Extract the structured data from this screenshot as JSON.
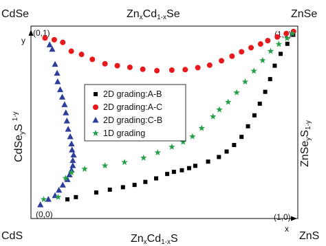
{
  "chart_data": {
    "type": "scatter",
    "title": "",
    "axes": {
      "x_range": [
        0,
        1
      ],
      "y_range": [
        0,
        1
      ],
      "x_axis_label": "x",
      "y_axis_label": "y",
      "grid": false,
      "legend_placement": "center"
    },
    "labels": {
      "top_edge": {
        "pre": "Zn",
        "sub1": "x",
        "mid": "Cd",
        "sub2": "1-x",
        "post": "Se"
      },
      "bottom_edge": {
        "pre": "Zn",
        "sub1": "x",
        "mid": "Cd",
        "sub2": "1-x",
        "post": "S"
      },
      "left_edge": {
        "pre": "CdSe",
        "sub1": "y",
        "mid": "S",
        "sub2": "1-y"
      },
      "right_edge": {
        "pre": "ZnSe",
        "sub1": "y",
        "mid": "S",
        "sub2": "1-y"
      },
      "corner_top_left": "CdSe",
      "corner_top_right": "ZnSe",
      "corner_bottom_left": "CdS",
      "corner_bottom_right": "ZnS",
      "coord_top_left": "(0,1)",
      "coord_top_right": "(1,1)",
      "coord_bottom_left": "(0,0)",
      "coord_bottom_right": "(1,0)"
    },
    "series": [
      {
        "name": "2D grading:A-B",
        "marker": "square",
        "color": "#000000",
        "points": [
          [
            0.115,
            0.046
          ],
          [
            0.148,
            0.059
          ],
          [
            0.227,
            0.085
          ],
          [
            0.28,
            0.101
          ],
          [
            0.331,
            0.115
          ],
          [
            0.376,
            0.128
          ],
          [
            0.418,
            0.145
          ],
          [
            0.46,
            0.165
          ],
          [
            0.503,
            0.19
          ],
          [
            0.529,
            0.202
          ],
          [
            0.56,
            0.211
          ],
          [
            0.588,
            0.223
          ],
          [
            0.612,
            0.236
          ],
          [
            0.662,
            0.26
          ],
          [
            0.704,
            0.286
          ],
          [
            0.734,
            0.317
          ],
          [
            0.763,
            0.354
          ],
          [
            0.792,
            0.4
          ],
          [
            0.817,
            0.46
          ],
          [
            0.842,
            0.522
          ],
          [
            0.863,
            0.588
          ],
          [
            0.884,
            0.655
          ],
          [
            0.903,
            0.727
          ],
          [
            0.921,
            0.803
          ],
          [
            0.944,
            0.87
          ],
          [
            0.97,
            0.927
          ],
          [
            0.993,
            0.978
          ]
        ]
      },
      {
        "name": "2D grading:A-C",
        "marker": "circle",
        "color": "#e8191c",
        "points": [
          [
            0.028,
            0.96
          ],
          [
            0.064,
            0.95
          ],
          [
            0.097,
            0.935
          ],
          [
            0.13,
            0.885
          ],
          [
            0.17,
            0.867
          ],
          [
            0.212,
            0.839
          ],
          [
            0.261,
            0.814
          ],
          [
            0.309,
            0.803
          ],
          [
            0.358,
            0.794
          ],
          [
            0.408,
            0.783
          ],
          [
            0.463,
            0.775
          ],
          [
            0.521,
            0.778
          ],
          [
            0.573,
            0.781
          ],
          [
            0.622,
            0.792
          ],
          [
            0.668,
            0.806
          ],
          [
            0.714,
            0.831
          ],
          [
            0.755,
            0.857
          ],
          [
            0.792,
            0.882
          ],
          [
            0.829,
            0.905
          ],
          [
            0.866,
            0.926
          ],
          [
            0.894,
            0.945
          ],
          [
            0.931,
            0.966
          ],
          [
            0.966,
            0.985
          ],
          [
            0.994,
            0.997
          ]
        ]
      },
      {
        "name": "2D grading:C-B",
        "marker": "triangle",
        "color": "#2e3e9c",
        "points": [
          [
            0.046,
            0.921
          ],
          [
            0.056,
            0.896
          ],
          [
            0.067,
            0.811
          ],
          [
            0.075,
            0.76
          ],
          [
            0.077,
            0.712
          ],
          [
            0.087,
            0.667
          ],
          [
            0.095,
            0.625
          ],
          [
            0.104,
            0.582
          ],
          [
            0.109,
            0.536
          ],
          [
            0.113,
            0.49
          ],
          [
            0.118,
            0.443
          ],
          [
            0.126,
            0.401
          ],
          [
            0.131,
            0.36
          ],
          [
            0.133,
            0.326
          ],
          [
            0.139,
            0.297
          ],
          [
            0.136,
            0.266
          ],
          [
            0.136,
            0.237
          ],
          [
            0.131,
            0.211
          ],
          [
            0.123,
            0.185
          ],
          [
            0.115,
            0.158
          ],
          [
            0.097,
            0.127
          ],
          [
            0.082,
            0.098
          ],
          [
            0.067,
            0.067
          ],
          [
            0.041,
            0.046
          ],
          [
            0.01,
            0.015
          ]
        ]
      },
      {
        "name": "1D grading",
        "marker": "star",
        "color": "#27a04a",
        "points": [
          [
            0.023,
            0.046
          ],
          [
            0.079,
            0.059
          ],
          [
            0.108,
            0.166
          ],
          [
            0.131,
            0.198
          ],
          [
            0.182,
            0.218
          ],
          [
            0.261,
            0.237
          ],
          [
            0.337,
            0.256
          ],
          [
            0.411,
            0.281
          ],
          [
            0.466,
            0.311
          ],
          [
            0.521,
            0.343
          ],
          [
            0.565,
            0.371
          ],
          [
            0.601,
            0.402
          ],
          [
            0.637,
            0.449
          ],
          [
            0.681,
            0.515
          ],
          [
            0.706,
            0.554
          ],
          [
            0.74,
            0.597
          ],
          [
            0.773,
            0.651
          ],
          [
            0.806,
            0.712
          ],
          [
            0.84,
            0.773
          ],
          [
            0.874,
            0.833
          ],
          [
            0.905,
            0.885
          ],
          [
            0.937,
            0.925
          ],
          [
            0.969,
            0.958
          ],
          [
            0.99,
            0.985
          ]
        ]
      }
    ]
  }
}
